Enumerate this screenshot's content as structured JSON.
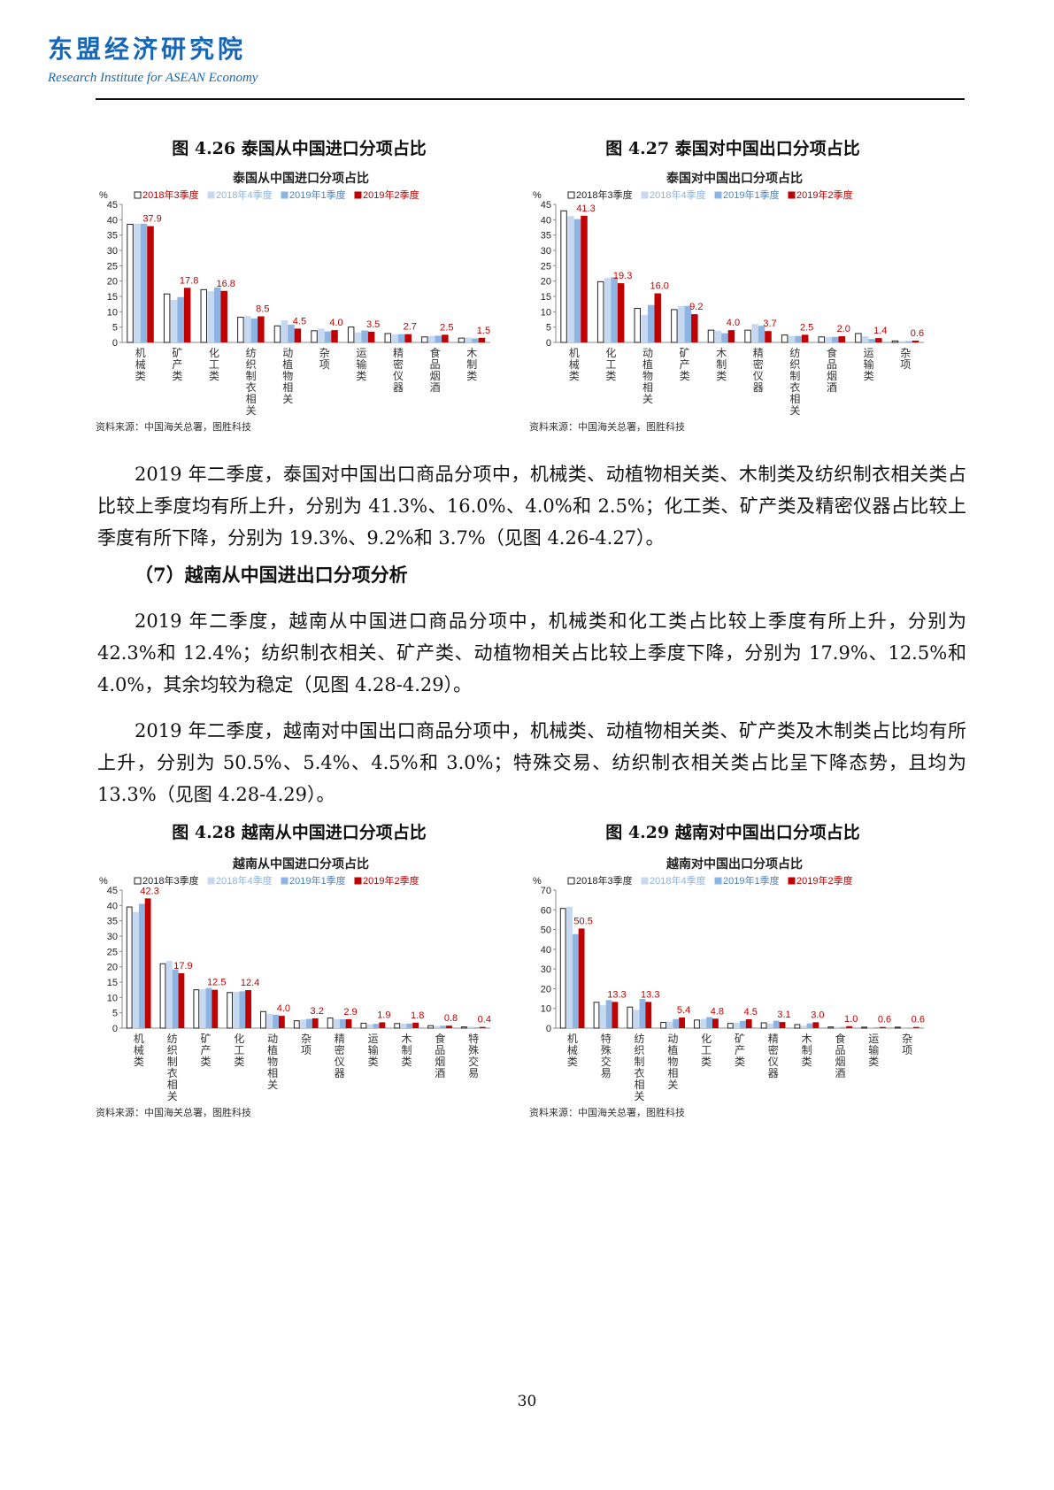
{
  "header": {
    "logo_cn": "东盟经济研究院",
    "logo_en": "Research Institute for ASEAN Economy"
  },
  "figures": [
    {
      "label": "图 4.26 泰国从中国进口分项占比"
    },
    {
      "label": "图 4.27 泰国对中国出口分项占比"
    },
    {
      "label": "图 4.28 越南从中国进口分项占比"
    },
    {
      "label": "图 4.29 越南对中国出口分项占比"
    }
  ],
  "paragraphs": [
    "2019 年二季度，泰国对中国出口商品分项中，机械类、动植物相关类、木制类及纺织制衣相关类占比较上季度均有所上升，分别为 41.3%、16.0%、4.0%和 2.5%；化工类、矿产类及精密仪器占比较上季度有所下降，分别为 19.3%、9.2%和 3.7%（见图 4.26-4.27）。",
    "2019 年二季度，越南从中国进口商品分项中，机械类和化工类占比较上季度有所上升，分别为 42.3%和 12.4%；纺织制衣相关、矿产类、动植物相关占比较上季度下降，分别为 17.9%、12.5%和 4.0%，其余均较为稳定（见图 4.28-4.29）。",
    "2019 年二季度，越南对中国出口商品分项中，机械类、动植物相关类、矿产类及木制类占比均有所上升，分别为 50.5%、5.4%、4.5%和 3.0%；特殊交易、纺织制衣相关类占比呈下降态势，且均为 13.3%（见图 4.28-4.29）。"
  ],
  "section_heading": "（7）越南从中国进出口分项分析",
  "page_number": "30",
  "series_colors": {
    "fill": [
      "#ffffff",
      "#c6d9f1",
      "#8db4e2",
      "#c00000"
    ],
    "stroke": [
      "#222222",
      "#c6d9f1",
      "#8db4e2",
      "#c00000"
    ],
    "legend_text": [
      "#222222",
      "#8db4e2",
      "#4f81bd",
      "#c00000"
    ]
  },
  "chart_data": [
    {
      "type": "bar",
      "title": "泰国从中国进口分项占比",
      "ylabel": "%",
      "ylim": [
        0,
        45
      ],
      "yticks": [
        0,
        5,
        10,
        15,
        20,
        25,
        30,
        35,
        40,
        45
      ],
      "source": "资料来源：中国海关总署，图胜科技",
      "legend": "top",
      "legend_first_color": "#c00000",
      "categories": [
        "机械类",
        "矿产类",
        "化工类",
        "纺织制衣相关",
        "动植物相关",
        "杂项",
        "运输类",
        "精密仪器",
        "食品烟酒",
        "木制类"
      ],
      "series": [
        {
          "name": "2018年3季度",
          "values": [
            38.5,
            15.8,
            17.2,
            8.2,
            5.4,
            3.8,
            5.0,
            2.9,
            1.8,
            1.4
          ]
        },
        {
          "name": "2018年4季度",
          "values": [
            38.7,
            13.9,
            16.7,
            8.6,
            7.2,
            4.5,
            3.3,
            2.6,
            2.1,
            1.6
          ]
        },
        {
          "name": "2019年1季度",
          "values": [
            38.7,
            14.8,
            17.9,
            7.8,
            5.8,
            3.6,
            3.9,
            2.7,
            2.2,
            1.3
          ]
        },
        {
          "name": "2019年2季度",
          "values": [
            37.9,
            17.8,
            16.8,
            8.5,
            4.5,
            4.0,
            3.5,
            2.7,
            2.5,
            1.5
          ]
        }
      ],
      "data_labels": [
        "37.9",
        "17.8",
        "16.8",
        "8.5",
        "4.5",
        "4.0",
        "3.5",
        "2.7",
        "2.5",
        "1.5"
      ]
    },
    {
      "type": "bar",
      "title": "泰国对中国出口分项占比",
      "ylabel": "%",
      "ylim": [
        0,
        45
      ],
      "yticks": [
        0,
        5,
        10,
        15,
        20,
        25,
        30,
        35,
        40,
        45
      ],
      "source": "资料来源：中国海关总署，图胜科技",
      "legend": "top",
      "categories": [
        "机械类",
        "化工类",
        "动植物相关",
        "矿产类",
        "木制类",
        "精密仪器",
        "纺织制衣相关",
        "食品烟酒",
        "运输类",
        "杂项"
      ],
      "series": [
        {
          "name": "2018年3季度",
          "values": [
            42.9,
            19.8,
            11.1,
            10.7,
            4.0,
            4.0,
            2.4,
            1.8,
            2.9,
            0.5
          ]
        },
        {
          "name": "2018年4季度",
          "values": [
            41.2,
            21.0,
            9.0,
            11.9,
            3.8,
            6.0,
            2.1,
            1.8,
            2.0,
            0.4
          ]
        },
        {
          "name": "2019年1季度",
          "values": [
            40.2,
            21.3,
            12.2,
            11.9,
            3.0,
            5.4,
            2.1,
            1.8,
            1.1,
            0.4
          ]
        },
        {
          "name": "2019年2季度",
          "values": [
            41.3,
            19.3,
            16.0,
            9.2,
            4.0,
            3.7,
            2.5,
            2.0,
            1.4,
            0.6
          ]
        }
      ],
      "data_labels": [
        "41.3",
        "19.3",
        "16.0",
        "9.2",
        "4.0",
        "3.7",
        "2.5",
        "2.0",
        "1.4",
        "0.6"
      ]
    },
    {
      "type": "bar",
      "title": "越南从中国进口分项占比",
      "ylabel": "%",
      "ylim": [
        0,
        45
      ],
      "yticks": [
        0,
        5,
        10,
        15,
        20,
        25,
        30,
        35,
        40,
        45
      ],
      "source": "资料来源：中国海关总署，图胜科技",
      "legend": "top",
      "categories": [
        "机械类",
        "纺织制衣相关",
        "矿产类",
        "化工类",
        "动植物相关",
        "杂项",
        "精密仪器",
        "运输类",
        "木制类",
        "食品烟酒",
        "特殊交易"
      ],
      "series": [
        {
          "name": "2018年3季度",
          "values": [
            39.5,
            21.0,
            12.5,
            11.6,
            5.4,
            2.4,
            3.3,
            1.6,
            1.5,
            0.8,
            0.4
          ]
        },
        {
          "name": "2018年4季度",
          "values": [
            37.9,
            21.9,
            12.7,
            11.8,
            4.7,
            2.8,
            2.9,
            1.2,
            1.5,
            0.7,
            0.5
          ]
        },
        {
          "name": "2019年1季度",
          "values": [
            40.5,
            19.1,
            13.1,
            12.0,
            4.4,
            3.0,
            2.9,
            1.4,
            1.5,
            0.8,
            0.3
          ]
        },
        {
          "name": "2019年2季度",
          "values": [
            42.3,
            17.9,
            12.5,
            12.4,
            4.0,
            3.2,
            2.9,
            1.9,
            1.8,
            0.8,
            0.4
          ]
        }
      ],
      "data_labels": [
        "42.3",
        "17.9",
        "12.5",
        "12.4",
        "4.0",
        "3.2",
        "2.9",
        "1.9",
        "1.8",
        "0.8",
        "0.4"
      ]
    },
    {
      "type": "bar",
      "title": "越南对中国出口分项占比",
      "ylabel": "%",
      "ylim": [
        0,
        70
      ],
      "yticks": [
        0,
        10,
        20,
        30,
        40,
        50,
        60,
        70
      ],
      "source": "资料来源：中国海关总署，图胜科技",
      "legend": "top",
      "categories": [
        "机械类",
        "特殊交易",
        "纺织制衣相关",
        "动植物相关",
        "化工类",
        "矿产类",
        "精密仪器",
        "木制类",
        "食品烟酒",
        "运输类",
        "杂项"
      ],
      "series": [
        {
          "name": "2018年3季度",
          "values": [
            60.7,
            13.1,
            10.7,
            2.9,
            4.1,
            2.4,
            2.7,
            1.8,
            0.6,
            0.5,
            0.5
          ]
        },
        {
          "name": "2018年4季度",
          "values": [
            61.6,
            11.6,
            9.3,
            3.4,
            4.7,
            2.7,
            2.3,
            1.2,
            0.6,
            0.5,
            0.5
          ]
        },
        {
          "name": "2019年1季度",
          "values": [
            47.7,
            14.2,
            14.8,
            4.6,
            5.6,
            3.7,
            3.8,
            2.4,
            0.6,
            0.5,
            0.3
          ]
        },
        {
          "name": "2019年2季度",
          "values": [
            50.5,
            13.3,
            13.3,
            5.4,
            4.8,
            4.5,
            3.1,
            3.0,
            1.0,
            0.6,
            0.6
          ]
        }
      ],
      "data_labels": [
        "50.5",
        "13.3",
        "13.3",
        "5.4",
        "4.8",
        "4.5",
        "3.1",
        "3.0",
        "1.0",
        "0.6",
        "0.6"
      ]
    }
  ]
}
